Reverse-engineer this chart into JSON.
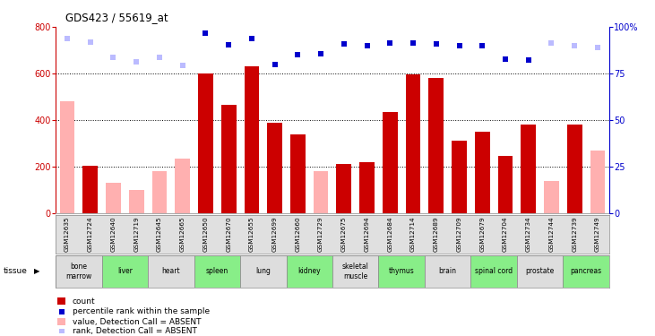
{
  "title": "GDS423 / 55619_at",
  "samples": [
    "GSM12635",
    "GSM12724",
    "GSM12640",
    "GSM12719",
    "GSM12645",
    "GSM12665",
    "GSM12650",
    "GSM12670",
    "GSM12655",
    "GSM12699",
    "GSM12660",
    "GSM12729",
    "GSM12675",
    "GSM12694",
    "GSM12684",
    "GSM12714",
    "GSM12689",
    "GSM12709",
    "GSM12679",
    "GSM12704",
    "GSM12734",
    "GSM12744",
    "GSM12739",
    "GSM12749"
  ],
  "tissues": [
    {
      "name": "bone\nmarrow",
      "span": [
        0,
        1
      ],
      "color": "#dddddd"
    },
    {
      "name": "liver",
      "span": [
        2,
        3
      ],
      "color": "#88ee88"
    },
    {
      "name": "heart",
      "span": [
        4,
        5
      ],
      "color": "#dddddd"
    },
    {
      "name": "spleen",
      "span": [
        6,
        7
      ],
      "color": "#88ee88"
    },
    {
      "name": "lung",
      "span": [
        8,
        9
      ],
      "color": "#dddddd"
    },
    {
      "name": "kidney",
      "span": [
        10,
        11
      ],
      "color": "#88ee88"
    },
    {
      "name": "skeletal\nmuscle",
      "span": [
        12,
        13
      ],
      "color": "#dddddd"
    },
    {
      "name": "thymus",
      "span": [
        14,
        15
      ],
      "color": "#88ee88"
    },
    {
      "name": "brain",
      "span": [
        16,
        17
      ],
      "color": "#dddddd"
    },
    {
      "name": "spinal cord",
      "span": [
        18,
        19
      ],
      "color": "#88ee88"
    },
    {
      "name": "prostate",
      "span": [
        20,
        21
      ],
      "color": "#dddddd"
    },
    {
      "name": "pancreas",
      "span": [
        22,
        23
      ],
      "color": "#88ee88"
    }
  ],
  "bar_values": [
    480,
    205,
    130,
    100,
    180,
    235,
    600,
    465,
    630,
    390,
    340,
    180,
    210,
    220,
    435,
    595,
    580,
    310,
    350,
    245,
    380,
    140,
    380,
    270
  ],
  "bar_colors": [
    "#ffb0b0",
    "#cc0000",
    "#ffb0b0",
    "#ffb0b0",
    "#ffb0b0",
    "#ffb0b0",
    "#cc0000",
    "#cc0000",
    "#cc0000",
    "#cc0000",
    "#cc0000",
    "#ffb0b0",
    "#cc0000",
    "#cc0000",
    "#cc0000",
    "#cc0000",
    "#cc0000",
    "#cc0000",
    "#cc0000",
    "#cc0000",
    "#cc0000",
    "#ffb0b0",
    "#cc0000",
    "#ffb0b0"
  ],
  "rank_values": [
    750,
    735,
    670,
    650,
    670,
    635,
    775,
    725,
    750,
    640,
    680,
    685,
    728,
    718,
    730,
    730,
    727,
    718,
    718,
    663,
    658,
    730,
    718,
    710
  ],
  "rank_colors": [
    "#bbbbff",
    "#bbbbff",
    "#bbbbff",
    "#bbbbff",
    "#bbbbff",
    "#bbbbff",
    "#0000cc",
    "#0000cc",
    "#0000cc",
    "#0000cc",
    "#0000cc",
    "#0000cc",
    "#0000cc",
    "#0000cc",
    "#0000cc",
    "#0000cc",
    "#0000cc",
    "#0000cc",
    "#0000cc",
    "#0000cc",
    "#0000cc",
    "#bbbbff",
    "#bbbbff",
    "#bbbbff"
  ],
  "ylim_left": [
    0,
    800
  ],
  "ylim_right": [
    0,
    100
  ],
  "yticks_left": [
    0,
    200,
    400,
    600,
    800
  ],
  "yticks_right": [
    0,
    25,
    50,
    75,
    100
  ],
  "hgrid_vals": [
    200,
    400,
    600
  ],
  "legend_items": [
    {
      "label": "count",
      "color": "#cc0000",
      "type": "rect"
    },
    {
      "label": "percentile rank within the sample",
      "color": "#0000cc",
      "type": "square"
    },
    {
      "label": "value, Detection Call = ABSENT",
      "color": "#ffb0b0",
      "type": "rect"
    },
    {
      "label": "rank, Detection Call = ABSENT",
      "color": "#bbbbff",
      "type": "square"
    }
  ],
  "fig_bg": "#ffffff",
  "sample_row_bg": "#e0e0e0"
}
